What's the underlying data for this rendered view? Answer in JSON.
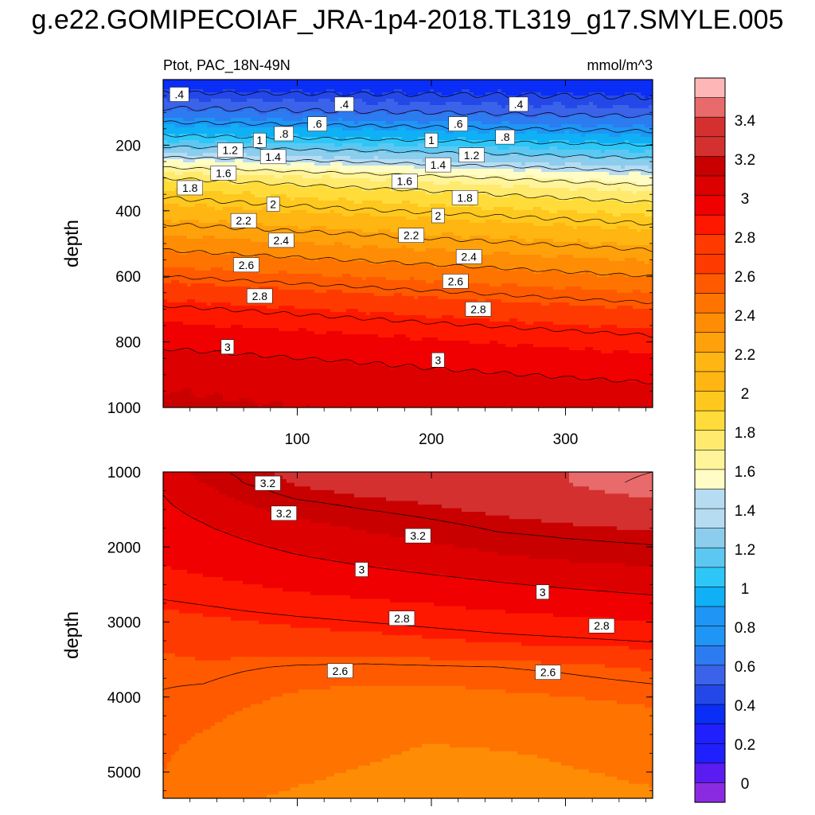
{
  "figure": {
    "title": "g.e22.GOMIPECOIAF_JRA-1p4-2018.TL319_g17.SMYLE.005",
    "left_string": "Ptot, PAC_18N-49N",
    "right_string": "mmol/m^3"
  },
  "colors": {
    "levels": [
      0,
      0.2,
      0.4,
      0.6,
      0.8,
      1.0,
      1.2,
      1.4,
      1.6,
      1.8,
      2.0,
      2.2,
      2.4,
      2.6,
      2.8,
      3.0,
      3.2,
      3.4
    ],
    "fills": [
      "#8a2be2",
      "#5a1cf0",
      "#2020ff",
      "#0a2ef5",
      "#2448e8",
      "#3a63ea",
      "#2c7bf0",
      "#1f95f5",
      "#0fb0f5",
      "#2ec6f7",
      "#5cc8f2",
      "#8ccdee",
      "#b6dcf2",
      "#fffcc6",
      "#fff49a",
      "#ffea6e",
      "#ffdc3a",
      "#ffc81e",
      "#ffb512",
      "#ffa10a",
      "#ff8c05",
      "#ff7300",
      "#ff5a00",
      "#ff3a00",
      "#ff1800",
      "#f00000",
      "#dc0000",
      "#c80000",
      "#d43030",
      "#e86a6a",
      "#ffb6b6"
    ]
  },
  "colorbar": {
    "tick_labels": [
      "0",
      "0.2",
      "0.4",
      "0.6",
      "0.8",
      "1",
      "1.2",
      "1.4",
      "1.6",
      "1.8",
      "2",
      "2.2",
      "2.4",
      "2.6",
      "2.8",
      "3",
      "3.2",
      "3.4"
    ]
  },
  "chart_data": [
    {
      "type": "heatmap",
      "panel": "upper",
      "xlabel": "",
      "ylabel": "depth",
      "xlim": [
        0,
        365
      ],
      "ylim": [
        1000,
        0
      ],
      "xticks": [
        "100",
        "200",
        "300"
      ],
      "yticks": [
        "200",
        "400",
        "600",
        "800",
        "1000"
      ],
      "contour_levels": [
        0.4,
        0.6,
        0.8,
        1.0,
        1.2,
        1.4,
        1.6,
        1.8,
        2.0,
        2.2,
        2.4,
        2.6,
        2.8,
        3.0
      ],
      "profile_x": [
        0,
        365
      ],
      "profile_depths": [
        20,
        60,
        100,
        140,
        180,
        220,
        260,
        300,
        340,
        380,
        420,
        460,
        520,
        580,
        640,
        700,
        780,
        860,
        940,
        1000
      ],
      "profile_values": [
        [
          0.3,
          0.3
        ],
        [
          0.5,
          0.42
        ],
        [
          0.65,
          0.55
        ],
        [
          0.85,
          0.72
        ],
        [
          1.05,
          0.9
        ],
        [
          1.3,
          1.1
        ],
        [
          1.55,
          1.3
        ],
        [
          1.8,
          1.5
        ],
        [
          1.95,
          1.68
        ],
        [
          2.05,
          1.82
        ],
        [
          2.15,
          1.95
        ],
        [
          2.25,
          2.05
        ],
        [
          2.4,
          2.2
        ],
        [
          2.55,
          2.35
        ],
        [
          2.7,
          2.5
        ],
        [
          2.82,
          2.65
        ],
        [
          2.95,
          2.8
        ],
        [
          3.05,
          2.92
        ],
        [
          3.12,
          3.02
        ],
        [
          3.15,
          3.05
        ]
      ],
      "contour_labels": [
        {
          "text": ".4",
          "x": 12,
          "y": 45
        },
        {
          "text": ".4",
          "x": 135,
          "y": 75
        },
        {
          "text": ".4",
          "x": 265,
          "y": 75
        },
        {
          "text": ".6",
          "x": 115,
          "y": 135
        },
        {
          "text": ".6",
          "x": 220,
          "y": 135
        },
        {
          "text": ".8",
          "x": 90,
          "y": 165
        },
        {
          "text": ".8",
          "x": 255,
          "y": 175
        },
        {
          "text": "1",
          "x": 72,
          "y": 185
        },
        {
          "text": "1",
          "x": 200,
          "y": 185
        },
        {
          "text": "1.2",
          "x": 50,
          "y": 215
        },
        {
          "text": "1.2",
          "x": 230,
          "y": 230
        },
        {
          "text": "1.4",
          "x": 82,
          "y": 235
        },
        {
          "text": "1.4",
          "x": 205,
          "y": 260
        },
        {
          "text": "1.6",
          "x": 45,
          "y": 285
        },
        {
          "text": "1.6",
          "x": 180,
          "y": 310
        },
        {
          "text": "1.8",
          "x": 20,
          "y": 330
        },
        {
          "text": "1.8",
          "x": 225,
          "y": 360
        },
        {
          "text": "2",
          "x": 82,
          "y": 380
        },
        {
          "text": "2",
          "x": 205,
          "y": 415
        },
        {
          "text": "2.2",
          "x": 60,
          "y": 430
        },
        {
          "text": "2.2",
          "x": 185,
          "y": 475
        },
        {
          "text": "2.4",
          "x": 88,
          "y": 490
        },
        {
          "text": "2.4",
          "x": 228,
          "y": 540
        },
        {
          "text": "2.6",
          "x": 62,
          "y": 565
        },
        {
          "text": "2.6",
          "x": 218,
          "y": 615
        },
        {
          "text": "2.8",
          "x": 72,
          "y": 660
        },
        {
          "text": "2.8",
          "x": 235,
          "y": 700
        },
        {
          "text": "3",
          "x": 48,
          "y": 815
        },
        {
          "text": "3",
          "x": 205,
          "y": 855
        }
      ]
    },
    {
      "type": "heatmap",
      "panel": "lower",
      "xlabel": "",
      "ylabel": "depth",
      "xlim": [
        0,
        365
      ],
      "ylim": [
        5350,
        1000
      ],
      "xticks": [
        "100",
        "200",
        "300"
      ],
      "yticks": [
        "1000",
        "2000",
        "3000",
        "4000",
        "5000"
      ],
      "contour_levels": [
        2.6,
        2.8,
        3.0,
        3.2,
        3.4
      ],
      "profile_x": [
        0,
        30,
        60,
        100,
        150,
        200,
        250,
        300,
        365
      ],
      "profile_depths": [
        1000,
        1150,
        1300,
        1500,
        1800,
        2100,
        2400,
        2700,
        3000,
        3300,
        3600,
        3900,
        4200,
        4500,
        4800,
        5100,
        5350
      ],
      "profile_values": [
        [
          3.05,
          3.17,
          3.22,
          3.26,
          3.27,
          3.28,
          3.3,
          3.36,
          3.4
        ],
        [
          3.02,
          3.12,
          3.2,
          3.25,
          3.27,
          3.28,
          3.3,
          3.36,
          3.42
        ],
        [
          3.0,
          3.08,
          3.16,
          3.22,
          3.25,
          3.27,
          3.29,
          3.33,
          3.38
        ],
        [
          2.98,
          3.03,
          3.1,
          3.16,
          3.2,
          3.23,
          3.26,
          3.28,
          3.3
        ],
        [
          2.95,
          2.98,
          3.02,
          3.07,
          3.12,
          3.16,
          3.2,
          3.22,
          3.24
        ],
        [
          2.91,
          2.93,
          2.96,
          3.0,
          3.04,
          3.08,
          3.12,
          3.15,
          3.17
        ],
        [
          2.86,
          2.88,
          2.9,
          2.93,
          2.96,
          2.99,
          3.02,
          3.05,
          3.08
        ],
        [
          2.8,
          2.82,
          2.84,
          2.86,
          2.88,
          2.9,
          2.93,
          2.95,
          2.98
        ],
        [
          2.72,
          2.74,
          2.76,
          2.78,
          2.8,
          2.82,
          2.84,
          2.86,
          2.88
        ],
        [
          2.66,
          2.68,
          2.7,
          2.71,
          2.72,
          2.74,
          2.76,
          2.77,
          2.79
        ],
        [
          2.62,
          2.63,
          2.61,
          2.59,
          2.58,
          2.59,
          2.6,
          2.62,
          2.66
        ],
        [
          2.6,
          2.59,
          2.56,
          2.53,
          2.51,
          2.51,
          2.53,
          2.55,
          2.58
        ],
        [
          2.58,
          2.56,
          2.52,
          2.48,
          2.45,
          2.44,
          2.45,
          2.47,
          2.51
        ],
        [
          2.56,
          2.52,
          2.47,
          2.44,
          2.42,
          2.41,
          2.42,
          2.43,
          2.45
        ],
        [
          2.54,
          2.47,
          2.43,
          2.42,
          2.41,
          2.4,
          2.4,
          2.41,
          2.42
        ],
        [
          2.52,
          2.44,
          2.42,
          2.41,
          2.4,
          2.4,
          2.4,
          2.4,
          2.41
        ],
        [
          2.5,
          2.42,
          2.41,
          2.4,
          2.4,
          2.4,
          2.4,
          2.4,
          2.4
        ]
      ],
      "contour_labels": [
        {
          "text": "3.2",
          "x": 78,
          "y": 1150
        },
        {
          "text": "3.2",
          "x": 90,
          "y": 1550
        },
        {
          "text": "3.2",
          "x": 190,
          "y": 1850
        },
        {
          "text": "3",
          "x": 148,
          "y": 2300
        },
        {
          "text": "3",
          "x": 283,
          "y": 2600
        },
        {
          "text": "2.8",
          "x": 178,
          "y": 2950
        },
        {
          "text": "2.8",
          "x": 327,
          "y": 3050
        },
        {
          "text": "2.6",
          "x": 132,
          "y": 3650
        },
        {
          "text": "2.6",
          "x": 287,
          "y": 3670
        }
      ]
    }
  ]
}
